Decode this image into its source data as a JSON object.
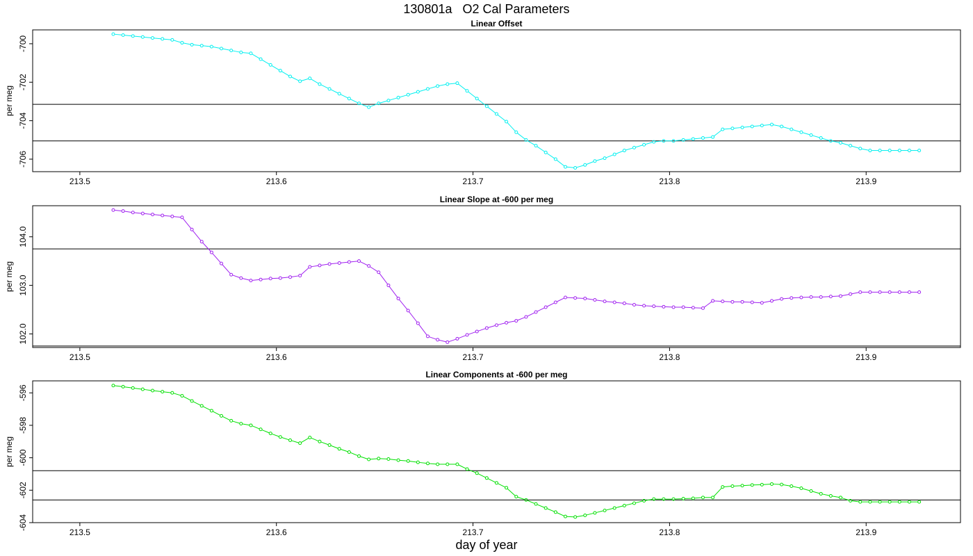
{
  "main_title": "130801a   O2 Cal Parameters",
  "x_axis_title": "day of year",
  "colors": {
    "offset": "#00f0f0",
    "slope": "#a020f0",
    "components": "#00e000",
    "ref_lines": "#000000"
  },
  "chart_data": [
    {
      "type": "line",
      "title": "Linear Offset",
      "xlabel": "",
      "ylabel": "per meg",
      "xlim": [
        213.476,
        213.948
      ],
      "ylim": [
        -706.65,
        -699.28
      ],
      "x_ticks": [
        "213.5",
        "213.6",
        "213.7",
        "213.8",
        "213.9"
      ],
      "y_ticks": [
        "-700",
        "-702",
        "-704",
        "-706"
      ],
      "hlines": [
        -703.15,
        -705.05
      ],
      "series": [
        {
          "color": "#00f0f0",
          "x": [
            213.517,
            213.522,
            213.527,
            213.532,
            213.537,
            213.542,
            213.547,
            213.552,
            213.557,
            213.562,
            213.567,
            213.572,
            213.577,
            213.582,
            213.587,
            213.592,
            213.597,
            213.602,
            213.607,
            213.612,
            213.617,
            213.622,
            213.627,
            213.632,
            213.637,
            213.642,
            213.647,
            213.652,
            213.657,
            213.662,
            213.667,
            213.672,
            213.677,
            213.682,
            213.687,
            213.692,
            213.697,
            213.702,
            213.707,
            213.712,
            213.717,
            213.722,
            213.727,
            213.732,
            213.737,
            213.742,
            213.747,
            213.752,
            213.757,
            213.762,
            213.767,
            213.772,
            213.777,
            213.782,
            213.787,
            213.792,
            213.797,
            213.802,
            213.807,
            213.812,
            213.817,
            213.822,
            213.827,
            213.832,
            213.837,
            213.842,
            213.847,
            213.852,
            213.857,
            213.862,
            213.867,
            213.872,
            213.877,
            213.882,
            213.887,
            213.892,
            213.897,
            213.902,
            213.907,
            213.912,
            213.917,
            213.922,
            213.927
          ],
          "y": [
            -699.5,
            -699.55,
            -699.6,
            -699.65,
            -699.7,
            -699.75,
            -699.8,
            -699.95,
            -700.05,
            -700.1,
            -700.15,
            -700.25,
            -700.35,
            -700.45,
            -700.5,
            -700.8,
            -701.1,
            -701.4,
            -701.7,
            -701.95,
            -701.8,
            -702.1,
            -702.35,
            -702.6,
            -702.85,
            -703.1,
            -703.3,
            -703.1,
            -702.95,
            -702.8,
            -702.65,
            -702.5,
            -702.35,
            -702.2,
            -702.1,
            -702.05,
            -702.45,
            -702.85,
            -703.25,
            -703.65,
            -704.05,
            -704.6,
            -705.0,
            -705.3,
            -705.65,
            -706.0,
            -706.4,
            -706.45,
            -706.3,
            -706.1,
            -705.95,
            -705.75,
            -705.55,
            -705.4,
            -705.25,
            -705.1,
            -705.05,
            -705.05,
            -705.0,
            -704.95,
            -704.9,
            -704.85,
            -704.45,
            -704.4,
            -704.35,
            -704.3,
            -704.25,
            -704.2,
            -704.3,
            -704.45,
            -704.6,
            -704.75,
            -704.9,
            -705.05,
            -705.15,
            -705.3,
            -705.45,
            -705.55,
            -705.55,
            -705.55,
            -705.55,
            -705.55,
            -705.55
          ]
        }
      ]
    },
    {
      "type": "line",
      "title": "Linear Slope at -600 per meg",
      "xlabel": "",
      "ylabel": "per meg",
      "xlim": [
        213.476,
        213.948
      ],
      "ylim": [
        101.72,
        104.64
      ],
      "x_ticks": [
        "213.5",
        "213.6",
        "213.7",
        "213.8",
        "213.9"
      ],
      "y_ticks": [
        "102.0",
        "103.0",
        "104.0"
      ],
      "hlines": [
        103.75,
        101.75
      ],
      "series": [
        {
          "color": "#a020f0",
          "x": [
            213.517,
            213.522,
            213.527,
            213.532,
            213.537,
            213.542,
            213.547,
            213.552,
            213.557,
            213.562,
            213.567,
            213.572,
            213.577,
            213.582,
            213.587,
            213.592,
            213.597,
            213.602,
            213.607,
            213.612,
            213.617,
            213.622,
            213.627,
            213.632,
            213.637,
            213.642,
            213.647,
            213.652,
            213.657,
            213.662,
            213.667,
            213.672,
            213.677,
            213.682,
            213.687,
            213.692,
            213.697,
            213.702,
            213.707,
            213.712,
            213.717,
            213.722,
            213.727,
            213.732,
            213.737,
            213.742,
            213.747,
            213.752,
            213.757,
            213.762,
            213.767,
            213.772,
            213.777,
            213.782,
            213.787,
            213.792,
            213.797,
            213.802,
            213.807,
            213.812,
            213.817,
            213.822,
            213.827,
            213.832,
            213.837,
            213.842,
            213.847,
            213.852,
            213.857,
            213.862,
            213.867,
            213.872,
            213.877,
            213.882,
            213.887,
            213.892,
            213.897,
            213.902,
            213.907,
            213.912,
            213.917,
            213.922,
            213.927
          ],
          "y": [
            104.55,
            104.53,
            104.5,
            104.48,
            104.46,
            104.44,
            104.42,
            104.4,
            104.15,
            103.9,
            103.68,
            103.45,
            103.22,
            103.15,
            103.1,
            103.12,
            103.14,
            103.15,
            103.17,
            103.2,
            103.38,
            103.41,
            103.44,
            103.46,
            103.48,
            103.5,
            103.4,
            103.27,
            103.0,
            102.73,
            102.48,
            102.22,
            101.95,
            101.88,
            101.83,
            101.9,
            101.98,
            102.05,
            102.12,
            102.18,
            102.23,
            102.27,
            102.35,
            102.45,
            102.55,
            102.65,
            102.75,
            102.74,
            102.73,
            102.7,
            102.67,
            102.65,
            102.63,
            102.6,
            102.58,
            102.57,
            102.56,
            102.55,
            102.55,
            102.54,
            102.53,
            102.68,
            102.67,
            102.66,
            102.66,
            102.65,
            102.64,
            102.68,
            102.72,
            102.74,
            102.75,
            102.76,
            102.76,
            102.77,
            102.78,
            102.82,
            102.86,
            102.86,
            102.86,
            102.86,
            102.86,
            102.86,
            102.86
          ]
        }
      ]
    },
    {
      "type": "line",
      "title": "Linear Components at -600 per meg",
      "xlabel": "",
      "ylabel": "per meg",
      "xlim": [
        213.476,
        213.948
      ],
      "ylim": [
        -604.0,
        -595.26
      ],
      "x_ticks": [
        "213.5",
        "213.6",
        "213.7",
        "213.8",
        "213.9"
      ],
      "y_ticks": [
        "-596",
        "-598",
        "-600",
        "-602",
        "-604"
      ],
      "hlines": [
        -600.8,
        -602.6
      ],
      "series": [
        {
          "color": "#00e000",
          "x": [
            213.517,
            213.522,
            213.527,
            213.532,
            213.537,
            213.542,
            213.547,
            213.552,
            213.557,
            213.562,
            213.567,
            213.572,
            213.577,
            213.582,
            213.587,
            213.592,
            213.597,
            213.602,
            213.607,
            213.612,
            213.617,
            213.622,
            213.627,
            213.632,
            213.637,
            213.642,
            213.647,
            213.652,
            213.657,
            213.662,
            213.667,
            213.672,
            213.677,
            213.682,
            213.687,
            213.692,
            213.697,
            213.702,
            213.707,
            213.712,
            213.717,
            213.722,
            213.727,
            213.732,
            213.737,
            213.742,
            213.747,
            213.752,
            213.757,
            213.762,
            213.767,
            213.772,
            213.777,
            213.782,
            213.787,
            213.792,
            213.797,
            213.802,
            213.807,
            213.812,
            213.817,
            213.822,
            213.827,
            213.832,
            213.837,
            213.842,
            213.847,
            213.852,
            213.857,
            213.862,
            213.867,
            213.872,
            213.877,
            213.882,
            213.887,
            213.892,
            213.897,
            213.902,
            213.907,
            213.912,
            213.917,
            213.922,
            213.927
          ],
          "y": [
            -595.55,
            -595.62,
            -595.7,
            -595.78,
            -595.86,
            -595.93,
            -596.0,
            -596.18,
            -596.5,
            -596.8,
            -597.1,
            -597.42,
            -597.72,
            -597.9,
            -598.0,
            -598.25,
            -598.5,
            -598.72,
            -598.92,
            -599.1,
            -598.75,
            -599.0,
            -599.22,
            -599.45,
            -599.65,
            -599.9,
            -600.1,
            -600.05,
            -600.08,
            -600.15,
            -600.2,
            -600.28,
            -600.35,
            -600.4,
            -600.4,
            -600.4,
            -600.7,
            -600.95,
            -601.25,
            -601.55,
            -601.85,
            -602.4,
            -602.6,
            -602.85,
            -603.1,
            -603.35,
            -603.62,
            -603.65,
            -603.55,
            -603.4,
            -603.25,
            -603.1,
            -602.95,
            -602.8,
            -602.65,
            -602.55,
            -602.55,
            -602.55,
            -602.52,
            -602.5,
            -602.45,
            -602.45,
            -601.8,
            -601.75,
            -601.72,
            -601.68,
            -601.66,
            -601.62,
            -601.65,
            -601.75,
            -601.88,
            -602.05,
            -602.22,
            -602.35,
            -602.45,
            -602.65,
            -602.72,
            -602.72,
            -602.72,
            -602.72,
            -602.72,
            -602.72,
            -602.72
          ]
        }
      ]
    }
  ]
}
